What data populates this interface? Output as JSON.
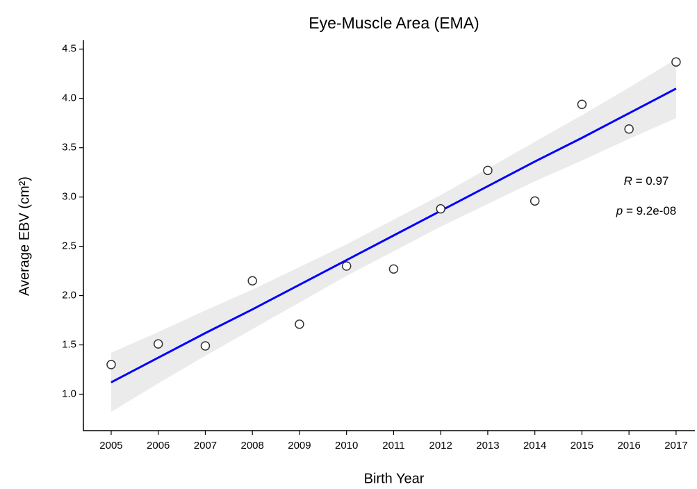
{
  "chart_data": {
    "type": "scatter",
    "title": "Eye-Muscle Area (EMA)",
    "xlabel": "Birth Year",
    "ylabel": "Average EBV  (cm²)",
    "x": [
      2005,
      2006,
      2007,
      2008,
      2009,
      2010,
      2011,
      2012,
      2013,
      2014,
      2015,
      2016,
      2017
    ],
    "values": [
      1.3,
      1.51,
      1.49,
      2.15,
      1.71,
      2.3,
      2.27,
      2.88,
      3.27,
      2.96,
      3.94,
      3.69,
      4.37
    ],
    "fit": [
      1.12,
      1.37,
      1.62,
      1.86,
      2.11,
      2.36,
      2.61,
      2.86,
      3.11,
      3.36,
      3.6,
      3.85,
      4.1
    ],
    "ci_lower": [
      0.82,
      1.11,
      1.39,
      1.66,
      1.93,
      2.2,
      2.45,
      2.7,
      2.93,
      3.16,
      3.37,
      3.59,
      3.8
    ],
    "ci_upper": [
      1.42,
      1.63,
      1.85,
      2.06,
      2.29,
      2.52,
      2.77,
      3.02,
      3.29,
      3.56,
      3.83,
      4.11,
      4.4
    ],
    "point_color": "#ffffff",
    "fit_color": "#0000ff",
    "band_color": "#ebebeb",
    "xlim": [
      2004.41,
      2017.4
    ],
    "ylim": [
      0.63,
      4.59
    ],
    "xticks": [
      2005,
      2006,
      2007,
      2008,
      2009,
      2010,
      2011,
      2012,
      2013,
      2014,
      2015,
      2016,
      2017
    ],
    "yticks": [
      {
        "value": 1,
        "label": "1.0"
      },
      1.5,
      {
        "value": 2,
        "label": "2.0"
      },
      2.5,
      {
        "value": 3,
        "label": "3.0"
      },
      3.5,
      {
        "value": 4,
        "label": "4.0"
      },
      4.5
    ],
    "annotations": [
      {
        "symbol": "R",
        "text": " = 0.97"
      },
      {
        "symbol": "p",
        "text": " = 9.2e-08"
      }
    ]
  }
}
